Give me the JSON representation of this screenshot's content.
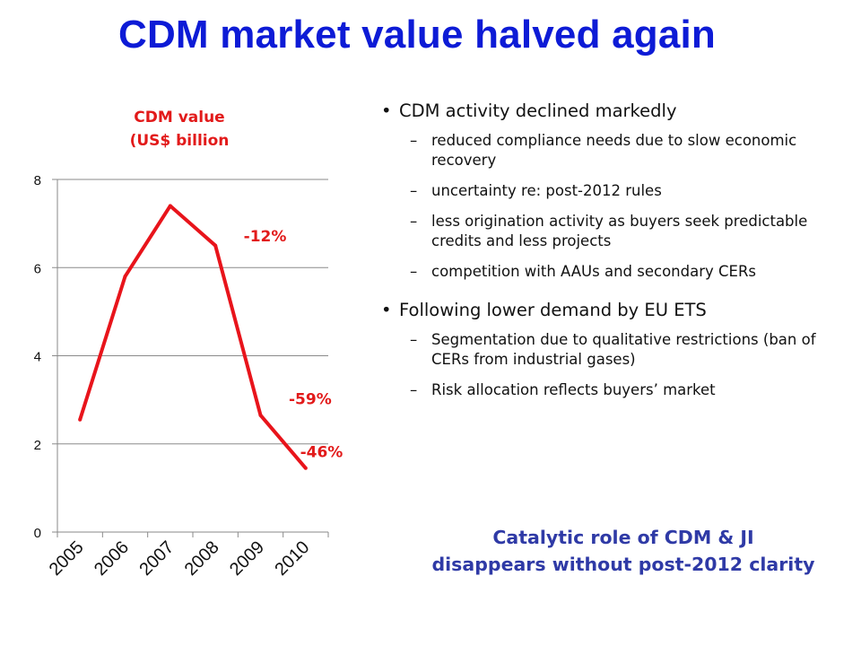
{
  "slide": {
    "title": "CDM market value halved again",
    "conclusion": [
      "Catalytic role of CDM & JI",
      "disappears without post-2012 clarity"
    ]
  },
  "bullets": [
    {
      "text": "CDM activity declined markedly",
      "subs": [
        "reduced compliance needs due to slow economic recovery",
        "uncertainty re: post-2012 rules",
        "less origination activity as buyers seek predictable credits and less projects",
        "competition with AAUs and secondary CERs"
      ]
    },
    {
      "text": "Following lower demand by EU ETS",
      "subs": [
        "Segmentation due to qualitative restrictions (ban of CERs from industrial gases)",
        "Risk allocation reflects buyers’ market"
      ]
    }
  ],
  "chart_data": {
    "type": "line",
    "title_lines": [
      "CDM value",
      "(US$ billion"
    ],
    "categories": [
      "2005",
      "2006",
      "2007",
      "2008",
      "2009",
      "2010"
    ],
    "x": [
      0.5,
      1.5,
      2.5,
      3.5,
      4.5,
      5.5
    ],
    "values": [
      2.55,
      5.8,
      7.4,
      6.5,
      2.65,
      1.45
    ],
    "yticks": [
      "0",
      "2",
      "4",
      "6",
      "8"
    ],
    "ylim": [
      0,
      8
    ],
    "xlim": [
      0,
      6
    ],
    "grid": true,
    "line_color": "#e8141b",
    "annotations": [
      {
        "text": "-12%",
        "x": 4.6,
        "y": 6.6
      },
      {
        "text": "-59%",
        "x": 5.6,
        "y": 2.9
      },
      {
        "text": "-46%",
        "x": 5.85,
        "y": 1.7
      }
    ]
  }
}
